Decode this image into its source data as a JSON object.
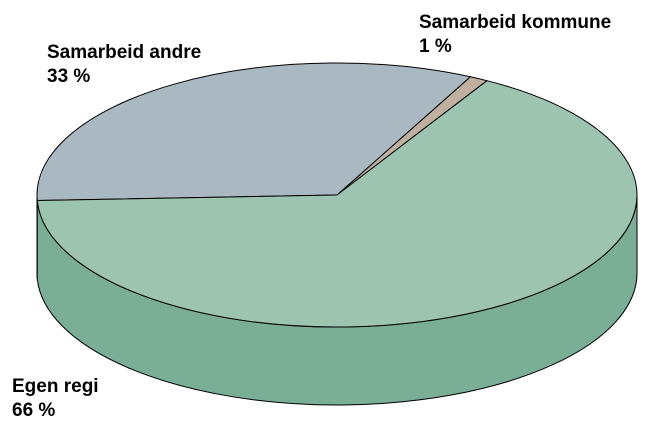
{
  "chart_data": {
    "type": "pie3d",
    "categories": [
      "Samarbeid kommune",
      "Samarbeid andre",
      "Egen regi"
    ],
    "values": [
      1,
      33,
      66
    ],
    "value_labels": [
      "1 %",
      "33 %",
      "66 %"
    ],
    "colors": [
      "#bfb09f",
      "#aab8c2",
      "#9dc4b1"
    ],
    "side_colors": [
      "#a39481",
      "#8d9ba5",
      "#7aae97"
    ]
  }
}
